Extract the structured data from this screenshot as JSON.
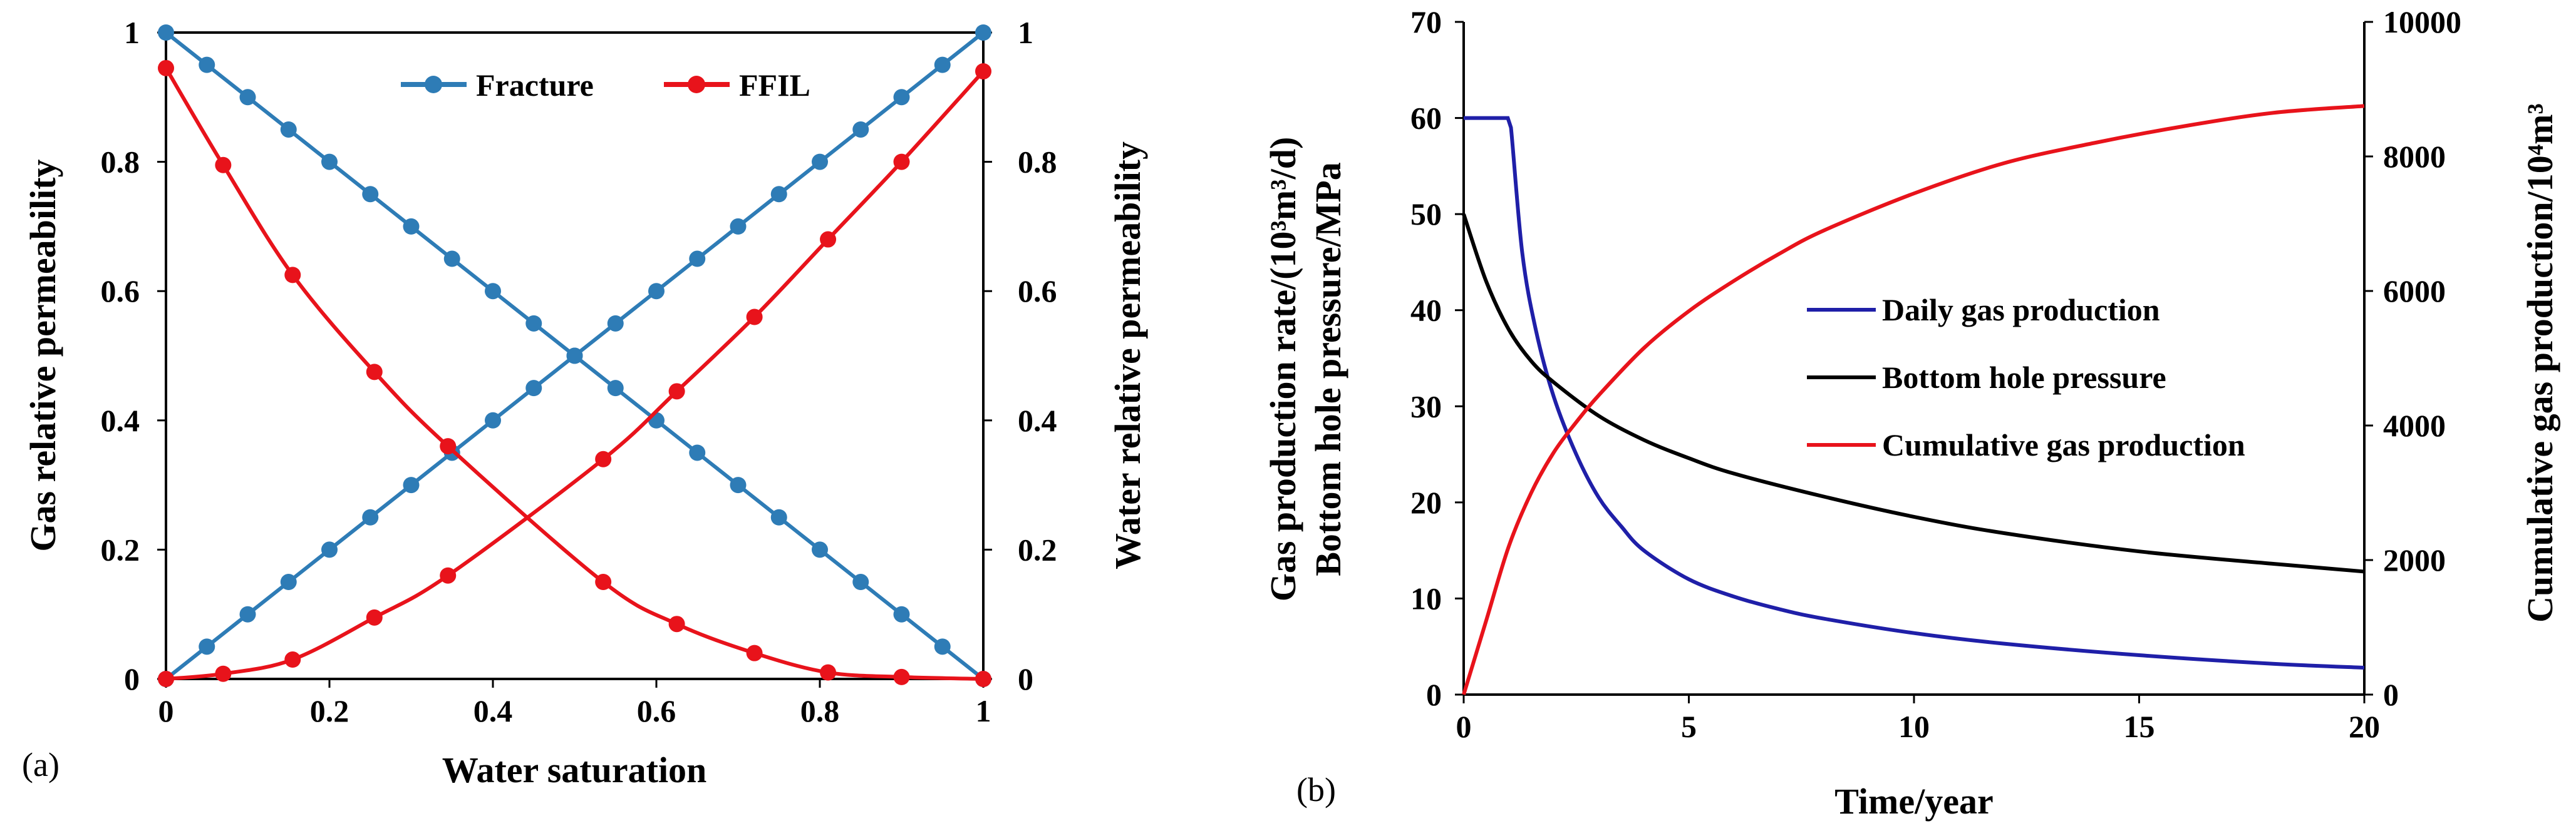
{
  "chart_data": [
    {
      "panel": "(a)",
      "type": "line",
      "xlabel": "Water saturation",
      "ylabel_left": "Gas relative permeability",
      "ylabel_right": "Water relative permeability",
      "xlim": [
        0,
        1
      ],
      "ylim_left": [
        0,
        1
      ],
      "ylim_right": [
        0,
        1
      ],
      "xticks": [
        "0",
        "0.2",
        "0.4",
        "0.6",
        "0.8",
        "1"
      ],
      "yticks_left": [
        "0",
        "0.2",
        "0.4",
        "0.6",
        "0.8",
        "1"
      ],
      "yticks_right": [
        "0",
        "0.2",
        "0.4",
        "0.6",
        "0.8",
        "1"
      ],
      "legend": [
        "Fracture",
        "FFIL"
      ],
      "colors": {
        "fracture": "#2E7CB6",
        "ffil": "#E8131B"
      },
      "series": [
        {
          "name": "Fracture",
          "kind": "gas",
          "x": [
            0,
            0.05,
            0.1,
            0.15,
            0.2,
            0.25,
            0.3,
            0.35,
            0.4,
            0.45,
            0.5,
            0.55,
            0.6,
            0.65,
            0.7,
            0.75,
            0.8,
            0.85,
            0.9,
            0.95,
            1
          ],
          "y": [
            1,
            0.95,
            0.9,
            0.85,
            0.8,
            0.75,
            0.7,
            0.65,
            0.6,
            0.55,
            0.5,
            0.45,
            0.4,
            0.35,
            0.3,
            0.25,
            0.2,
            0.15,
            0.1,
            0.05,
            0
          ]
        },
        {
          "name": "Fracture",
          "kind": "water",
          "x": [
            0,
            0.05,
            0.1,
            0.15,
            0.2,
            0.25,
            0.3,
            0.35,
            0.4,
            0.45,
            0.5,
            0.55,
            0.6,
            0.65,
            0.7,
            0.75,
            0.8,
            0.85,
            0.9,
            0.95,
            1
          ],
          "y": [
            0,
            0.05,
            0.1,
            0.15,
            0.2,
            0.25,
            0.3,
            0.35,
            0.4,
            0.45,
            0.5,
            0.55,
            0.6,
            0.65,
            0.7,
            0.75,
            0.8,
            0.85,
            0.9,
            0.95,
            1
          ]
        },
        {
          "name": "FFIL",
          "kind": "gas",
          "x": [
            0,
            0.07,
            0.155,
            0.255,
            0.345,
            0.535,
            0.625,
            0.72,
            0.81,
            0.9,
            1
          ],
          "y": [
            0.945,
            0.795,
            0.625,
            0.475,
            0.36,
            0.15,
            0.085,
            0.04,
            0.01,
            0.003,
            0
          ]
        },
        {
          "name": "FFIL",
          "kind": "water",
          "x": [
            0,
            0.07,
            0.155,
            0.255,
            0.345,
            0.535,
            0.625,
            0.72,
            0.81,
            0.9,
            1
          ],
          "y": [
            0,
            0.008,
            0.03,
            0.095,
            0.16,
            0.34,
            0.445,
            0.56,
            0.68,
            0.8,
            0.94
          ]
        }
      ]
    },
    {
      "panel": "(b)",
      "type": "line",
      "xlabel": "Time/year",
      "ylabel_left_line1": "Gas production  rate/(10³m³/d)",
      "ylabel_left_line2": "Bottom hole pressure/MPa",
      "ylabel_right": "Cumulative gas production/10⁴m³",
      "xlim": [
        0,
        20
      ],
      "ylim_left": [
        0,
        70
      ],
      "ylim_right": [
        0,
        10000
      ],
      "xticks": [
        "0",
        "5",
        "10",
        "15",
        "20"
      ],
      "yticks_left": [
        "0",
        "10",
        "20",
        "30",
        "40",
        "50",
        "60",
        "70"
      ],
      "yticks_right": [
        "0",
        "2000",
        "4000",
        "6000",
        "8000",
        "10000"
      ],
      "legend": [
        "Daily gas production",
        "Bottom hole pressure",
        "Cumulative gas production"
      ],
      "colors": {
        "daily": "#1F1FA8",
        "bhp": "#000000",
        "cum": "#E8131B"
      },
      "series": [
        {
          "name": "Daily gas production",
          "axis": "left",
          "x": [
            0,
            0.98,
            1.05,
            1.3,
            1.6,
            2,
            2.5,
            3,
            3.5,
            4,
            5,
            6,
            7,
            8,
            10,
            12,
            15,
            18,
            20
          ],
          "y": [
            60,
            60,
            59,
            46,
            38,
            31,
            25,
            20.5,
            17.5,
            15,
            12,
            10.2,
            8.9,
            7.9,
            6.4,
            5.3,
            4.1,
            3.2,
            2.8
          ]
        },
        {
          "name": "Bottom hole pressure",
          "axis": "left",
          "x": [
            0,
            0.5,
            1,
            1.5,
            2,
            3,
            4,
            5,
            6,
            8,
            10,
            12,
            15,
            18,
            20
          ],
          "y": [
            50,
            43,
            38,
            34.7,
            32.5,
            29,
            26.5,
            24.6,
            23,
            20.6,
            18.5,
            16.8,
            14.9,
            13.6,
            12.8
          ]
        },
        {
          "name": "Cumulative gas production",
          "axis": "right",
          "x": [
            0,
            0.5,
            1,
            1.5,
            2,
            2.5,
            3,
            4,
            5,
            6,
            7,
            8,
            10,
            12,
            14,
            16,
            18,
            20
          ],
          "y": [
            0,
            1100,
            2200,
            3000,
            3600,
            4050,
            4450,
            5150,
            5700,
            6150,
            6550,
            6900,
            7450,
            7900,
            8200,
            8450,
            8650,
            8750
          ]
        }
      ]
    }
  ]
}
